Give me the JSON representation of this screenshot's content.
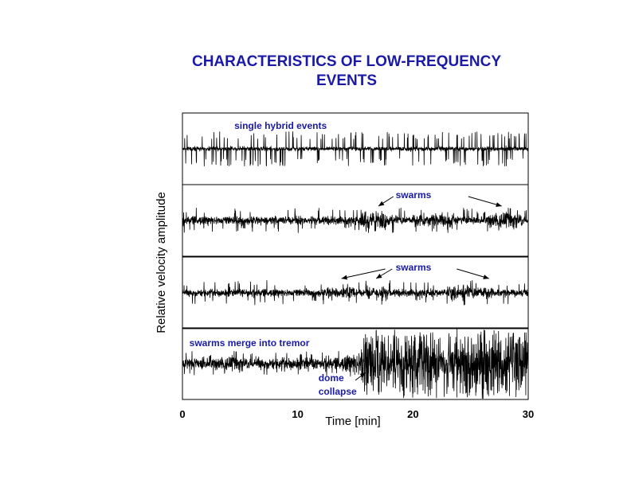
{
  "chart_data": {
    "type": "line",
    "title_line1": "CHARACTERISTICS OF LOW-FREQUENCY",
    "title_line2": "EVENTS",
    "xlabel": "Time [min]",
    "ylabel": "Relative velocity amplitude",
    "xlim": [
      0,
      30
    ],
    "xticks": [
      0,
      10,
      20,
      30
    ],
    "grid": false,
    "panels": [
      {
        "annotations": [
          {
            "text": "single hybrid events",
            "x": 4.5
          }
        ],
        "arrows": []
      },
      {
        "annotations": [
          {
            "text": "swarms",
            "x": 18.5
          }
        ],
        "arrows": [
          {
            "from_x": 18.3,
            "to_x": 17.0
          },
          {
            "from_x": 24.8,
            "to_x": 27.7
          }
        ]
      },
      {
        "annotations": [
          {
            "text": "swarms",
            "x": 18.5
          }
        ],
        "arrows": [
          {
            "from_x": 17.6,
            "to_x": 13.8
          },
          {
            "from_x": 18.2,
            "to_x": 16.8
          },
          {
            "from_x": 23.8,
            "to_x": 26.6
          }
        ]
      },
      {
        "annotations": [
          {
            "text": "swarms merge into tremor",
            "x": 0.6
          },
          {
            "text": "dome",
            "x": 11.8
          },
          {
            "text": "collapse",
            "x": 11.8
          }
        ],
        "arrows": [
          {
            "from_x": 15.0,
            "to_x": 15.9
          }
        ]
      }
    ]
  }
}
